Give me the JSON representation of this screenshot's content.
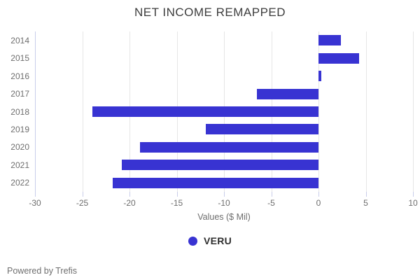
{
  "title": "NET INCOME REMAPPED",
  "legend": {
    "label": "VERU",
    "color": "#3833d2"
  },
  "footer": {
    "text": "Powered by Trefis"
  },
  "chart_data": {
    "type": "bar",
    "orientation": "horizontal",
    "title": "NET INCOME REMAPPED",
    "xlabel": "Values ($ Mil)",
    "categories": [
      "2014",
      "2015",
      "2016",
      "2017",
      "2018",
      "2019",
      "2020",
      "2021",
      "2022"
    ],
    "series": [
      {
        "name": "VERU",
        "color": "#3833d2",
        "values": [
          2.4,
          4.3,
          0.3,
          -6.5,
          -23.9,
          -11.9,
          -18.9,
          -20.8,
          -21.8
        ]
      }
    ],
    "xlim": [
      -30,
      10
    ],
    "xticks": [
      -30,
      -25,
      -20,
      -15,
      -10,
      -5,
      0,
      5,
      10
    ],
    "grid": true,
    "legend_position": "bottom"
  }
}
